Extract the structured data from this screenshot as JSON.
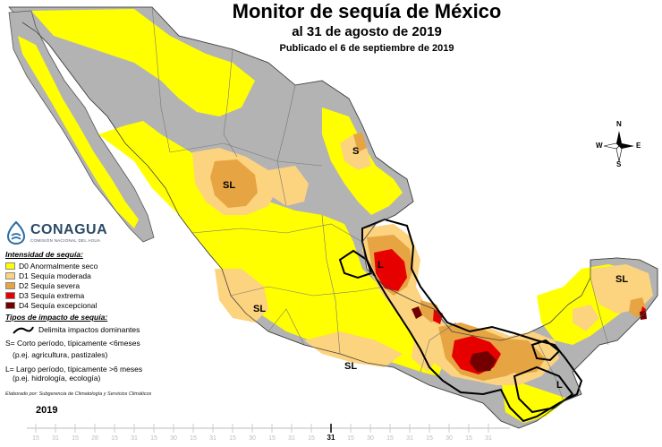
{
  "title": {
    "main": "Monitor de sequía de México",
    "date": "al 31 de agosto de 2019",
    "published": "Publicado el 6 de septiembre de 2019"
  },
  "logo": {
    "name": "CONAGUA",
    "subtitle": "COMISIÓN NACIONAL DEL AGUA"
  },
  "legend": {
    "intensity_title": "Intensidad de sequía:",
    "items": [
      {
        "code": "D0",
        "label": "D0 Anormalmente seco",
        "color": "#ffff00"
      },
      {
        "code": "D1",
        "label": "D1 Sequía moderada",
        "color": "#fcd37f"
      },
      {
        "code": "D2",
        "label": "D2 Sequía severa",
        "color": "#e6a443"
      },
      {
        "code": "D3",
        "label": "D3 Sequía extrema",
        "color": "#e60000"
      },
      {
        "code": "D4",
        "label": "D4 Sequía excepcional",
        "color": "#730000"
      }
    ],
    "impact_title": "Tipos de impacto de sequía:",
    "impact_line_label": "Delimita impactos dominantes",
    "short_term": "S= Corto período, típicamente <6meses",
    "short_term_example": "(p.ej. agricultura, pastizales)",
    "long_term": "L= Largo período, típicamente >6 meses",
    "long_term_example": "(p.ej. hidrología, ecología)",
    "credit": "Elaborado por: Subgerencia de Climatología y Servicios Climáticos"
  },
  "compass": {
    "n": "N",
    "s": "S",
    "e": "E",
    "w": "W"
  },
  "map_labels": [
    {
      "id": "s-north",
      "text": "S"
    },
    {
      "id": "sl-north",
      "text": "SL"
    },
    {
      "id": "l-east",
      "text": "L"
    },
    {
      "id": "sl-yucatan",
      "text": "SL"
    },
    {
      "id": "sl-west",
      "text": "SL"
    },
    {
      "id": "sl-south",
      "text": "SL"
    },
    {
      "id": "l-chiapas",
      "text": "L"
    }
  ],
  "timeline": {
    "year": "2019",
    "labels": [
      "15",
      "31",
      "15",
      "28",
      "15",
      "31",
      "15",
      "30",
      "15",
      "31",
      "15",
      "30",
      "15",
      "31",
      "15",
      "31",
      "15",
      "30",
      "15",
      "31",
      "15",
      "30",
      "15",
      "31"
    ],
    "active_label": "31",
    "active_index": 15
  },
  "colors": {
    "no_drought": "#b3b3b3",
    "water": "#ffffff",
    "boundary": "#6b6b6b"
  }
}
